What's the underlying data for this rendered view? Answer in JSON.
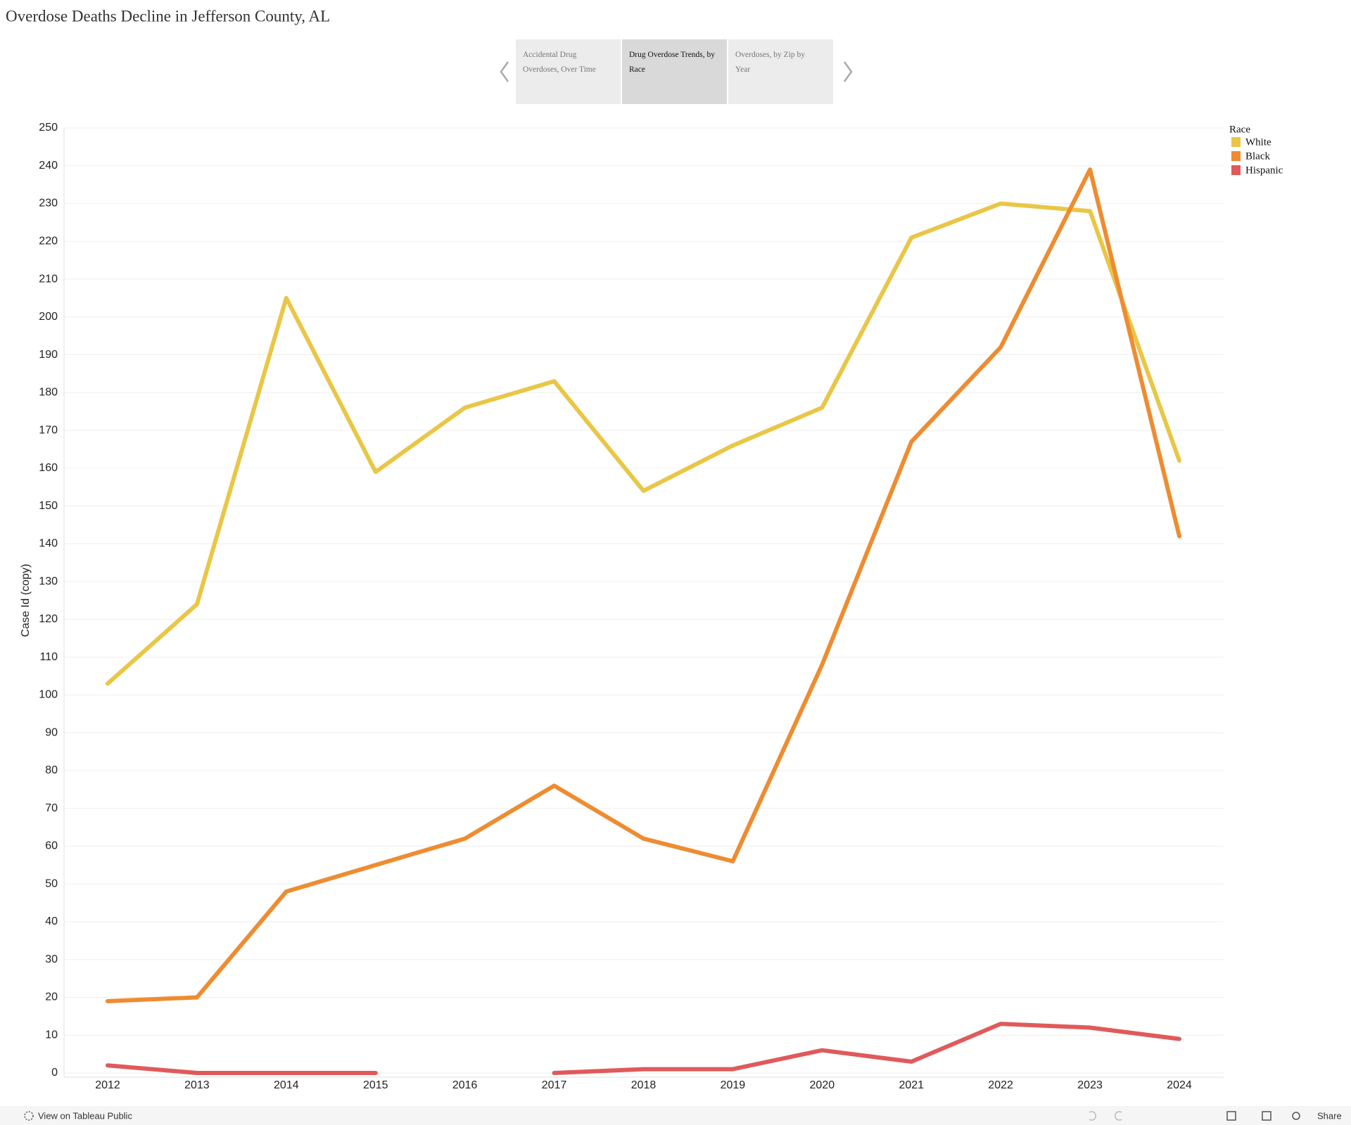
{
  "header": {
    "title": "Overdose Deaths Decline in Jefferson County, AL"
  },
  "tabs": [
    "Accidental Drug Overdoses, Over Time",
    "Drug Overdose Trends, by Race",
    "Overdoses, by Zip by Year"
  ],
  "chart_data": {
    "type": "line",
    "y_label": "Case Id (copy)",
    "legend_title": "Race",
    "legend_position": "top-right",
    "grid": true,
    "categories": [
      "2012",
      "2013",
      "2014",
      "2015",
      "2016",
      "2017",
      "2018",
      "2019",
      "2020",
      "2021",
      "2022",
      "2023",
      "2024"
    ],
    "series": [
      {
        "name": "White",
        "color": "#e9c646",
        "values": [
          103,
          124,
          205,
          159,
          176,
          183,
          154,
          166,
          176,
          221,
          230,
          228,
          162
        ]
      },
      {
        "name": "Black",
        "color": "#ee8c31",
        "values": [
          19,
          20,
          48,
          55,
          62,
          76,
          62,
          56,
          108,
          167,
          192,
          239,
          142
        ]
      },
      {
        "name": "Hispanic",
        "color": "#e05a5a",
        "values": [
          2,
          0,
          0,
          0,
          null,
          0,
          1,
          1,
          6,
          3,
          13,
          12,
          9
        ]
      }
    ],
    "ylim": [
      0,
      250
    ],
    "yticks": [
      0,
      10,
      20,
      30,
      40,
      50,
      60,
      70,
      80,
      90,
      100,
      110,
      120,
      130,
      140,
      150,
      160,
      170,
      180,
      190,
      200,
      210,
      220,
      230,
      240,
      250
    ]
  },
  "footer": {
    "link": "View on Tableau Public",
    "share": "Share"
  }
}
